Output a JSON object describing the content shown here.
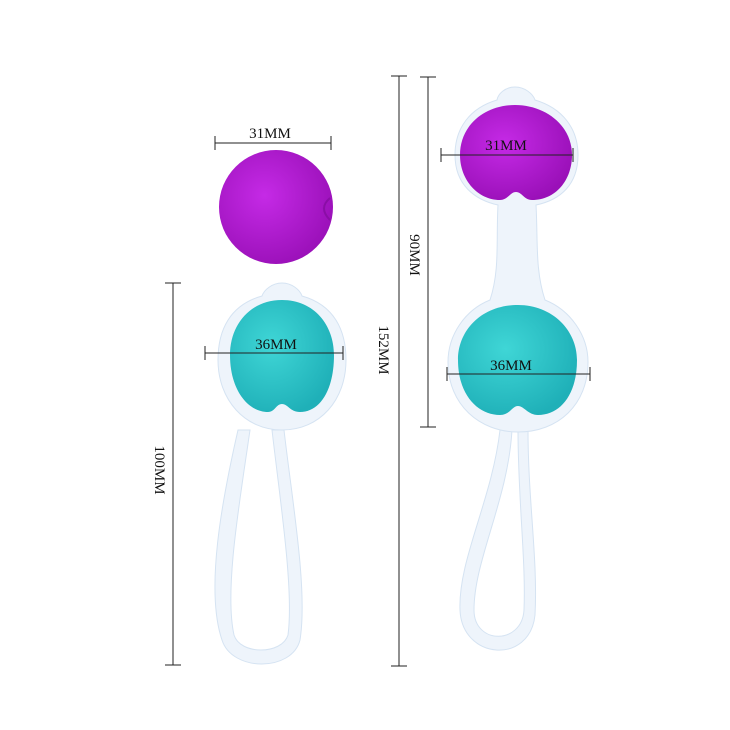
{
  "colors": {
    "purple": "#b81ad8",
    "teal": "#2ec9cc",
    "silicone": "#eef4fb",
    "silicone_edge": "#d5e3f2"
  },
  "left_item": {
    "loose_ball_diameter": "31MM",
    "ball_diameter": "36MM",
    "total_length": "100MM"
  },
  "right_item": {
    "total_length": "152MM",
    "balls_length": "90MM",
    "top_ball_diameter": "31MM",
    "bottom_ball_diameter": "36MM"
  }
}
